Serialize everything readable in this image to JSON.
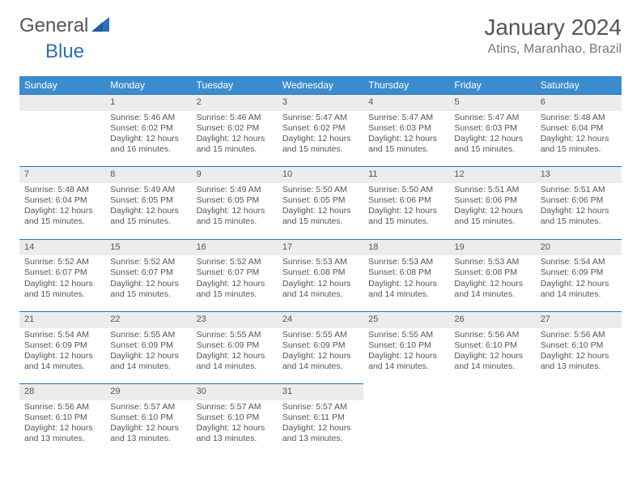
{
  "logo": {
    "part1": "General",
    "part2": "Blue"
  },
  "title": {
    "month": "January 2024",
    "location": "Atins, Maranhao, Brazil"
  },
  "weekdays": [
    "Sunday",
    "Monday",
    "Tuesday",
    "Wednesday",
    "Thursday",
    "Friday",
    "Saturday"
  ],
  "colors": {
    "header_bg": "#3b8ccf",
    "daynum_bg": "#ececec",
    "rule": "#2d6fb5",
    "logo_blue": "#2d6fb5",
    "text_gray": "#555"
  },
  "weeks": [
    [
      {
        "n": "",
        "lines": []
      },
      {
        "n": "1",
        "lines": [
          "Sunrise: 5:46 AM",
          "Sunset: 6:02 PM",
          "Daylight: 12 hours",
          "and 16 minutes."
        ]
      },
      {
        "n": "2",
        "lines": [
          "Sunrise: 5:46 AM",
          "Sunset: 6:02 PM",
          "Daylight: 12 hours",
          "and 15 minutes."
        ]
      },
      {
        "n": "3",
        "lines": [
          "Sunrise: 5:47 AM",
          "Sunset: 6:02 PM",
          "Daylight: 12 hours",
          "and 15 minutes."
        ]
      },
      {
        "n": "4",
        "lines": [
          "Sunrise: 5:47 AM",
          "Sunset: 6:03 PM",
          "Daylight: 12 hours",
          "and 15 minutes."
        ]
      },
      {
        "n": "5",
        "lines": [
          "Sunrise: 5:47 AM",
          "Sunset: 6:03 PM",
          "Daylight: 12 hours",
          "and 15 minutes."
        ]
      },
      {
        "n": "6",
        "lines": [
          "Sunrise: 5:48 AM",
          "Sunset: 6:04 PM",
          "Daylight: 12 hours",
          "and 15 minutes."
        ]
      }
    ],
    [
      {
        "n": "7",
        "lines": [
          "Sunrise: 5:48 AM",
          "Sunset: 6:04 PM",
          "Daylight: 12 hours",
          "and 15 minutes."
        ]
      },
      {
        "n": "8",
        "lines": [
          "Sunrise: 5:49 AM",
          "Sunset: 6:05 PM",
          "Daylight: 12 hours",
          "and 15 minutes."
        ]
      },
      {
        "n": "9",
        "lines": [
          "Sunrise: 5:49 AM",
          "Sunset: 6:05 PM",
          "Daylight: 12 hours",
          "and 15 minutes."
        ]
      },
      {
        "n": "10",
        "lines": [
          "Sunrise: 5:50 AM",
          "Sunset: 6:05 PM",
          "Daylight: 12 hours",
          "and 15 minutes."
        ]
      },
      {
        "n": "11",
        "lines": [
          "Sunrise: 5:50 AM",
          "Sunset: 6:06 PM",
          "Daylight: 12 hours",
          "and 15 minutes."
        ]
      },
      {
        "n": "12",
        "lines": [
          "Sunrise: 5:51 AM",
          "Sunset: 6:06 PM",
          "Daylight: 12 hours",
          "and 15 minutes."
        ]
      },
      {
        "n": "13",
        "lines": [
          "Sunrise: 5:51 AM",
          "Sunset: 6:06 PM",
          "Daylight: 12 hours",
          "and 15 minutes."
        ]
      }
    ],
    [
      {
        "n": "14",
        "lines": [
          "Sunrise: 5:52 AM",
          "Sunset: 6:07 PM",
          "Daylight: 12 hours",
          "and 15 minutes."
        ]
      },
      {
        "n": "15",
        "lines": [
          "Sunrise: 5:52 AM",
          "Sunset: 6:07 PM",
          "Daylight: 12 hours",
          "and 15 minutes."
        ]
      },
      {
        "n": "16",
        "lines": [
          "Sunrise: 5:52 AM",
          "Sunset: 6:07 PM",
          "Daylight: 12 hours",
          "and 15 minutes."
        ]
      },
      {
        "n": "17",
        "lines": [
          "Sunrise: 5:53 AM",
          "Sunset: 6:08 PM",
          "Daylight: 12 hours",
          "and 14 minutes."
        ]
      },
      {
        "n": "18",
        "lines": [
          "Sunrise: 5:53 AM",
          "Sunset: 6:08 PM",
          "Daylight: 12 hours",
          "and 14 minutes."
        ]
      },
      {
        "n": "19",
        "lines": [
          "Sunrise: 5:53 AM",
          "Sunset: 6:08 PM",
          "Daylight: 12 hours",
          "and 14 minutes."
        ]
      },
      {
        "n": "20",
        "lines": [
          "Sunrise: 5:54 AM",
          "Sunset: 6:09 PM",
          "Daylight: 12 hours",
          "and 14 minutes."
        ]
      }
    ],
    [
      {
        "n": "21",
        "lines": [
          "Sunrise: 5:54 AM",
          "Sunset: 6:09 PM",
          "Daylight: 12 hours",
          "and 14 minutes."
        ]
      },
      {
        "n": "22",
        "lines": [
          "Sunrise: 5:55 AM",
          "Sunset: 6:09 PM",
          "Daylight: 12 hours",
          "and 14 minutes."
        ]
      },
      {
        "n": "23",
        "lines": [
          "Sunrise: 5:55 AM",
          "Sunset: 6:09 PM",
          "Daylight: 12 hours",
          "and 14 minutes."
        ]
      },
      {
        "n": "24",
        "lines": [
          "Sunrise: 5:55 AM",
          "Sunset: 6:09 PM",
          "Daylight: 12 hours",
          "and 14 minutes."
        ]
      },
      {
        "n": "25",
        "lines": [
          "Sunrise: 5:55 AM",
          "Sunset: 6:10 PM",
          "Daylight: 12 hours",
          "and 14 minutes."
        ]
      },
      {
        "n": "26",
        "lines": [
          "Sunrise: 5:56 AM",
          "Sunset: 6:10 PM",
          "Daylight: 12 hours",
          "and 14 minutes."
        ]
      },
      {
        "n": "27",
        "lines": [
          "Sunrise: 5:56 AM",
          "Sunset: 6:10 PM",
          "Daylight: 12 hours",
          "and 13 minutes."
        ]
      }
    ],
    [
      {
        "n": "28",
        "lines": [
          "Sunrise: 5:56 AM",
          "Sunset: 6:10 PM",
          "Daylight: 12 hours",
          "and 13 minutes."
        ]
      },
      {
        "n": "29",
        "lines": [
          "Sunrise: 5:57 AM",
          "Sunset: 6:10 PM",
          "Daylight: 12 hours",
          "and 13 minutes."
        ]
      },
      {
        "n": "30",
        "lines": [
          "Sunrise: 5:57 AM",
          "Sunset: 6:10 PM",
          "Daylight: 12 hours",
          "and 13 minutes."
        ]
      },
      {
        "n": "31",
        "lines": [
          "Sunrise: 5:57 AM",
          "Sunset: 6:11 PM",
          "Daylight: 12 hours",
          "and 13 minutes."
        ]
      },
      {
        "n": "",
        "lines": []
      },
      {
        "n": "",
        "lines": []
      },
      {
        "n": "",
        "lines": []
      }
    ]
  ]
}
